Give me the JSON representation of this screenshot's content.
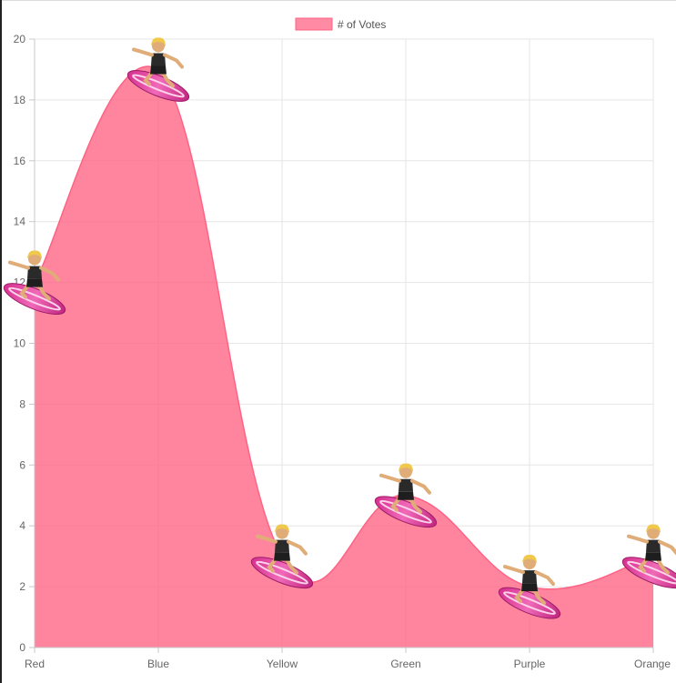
{
  "chart_data": {
    "type": "area",
    "categories": [
      "Red",
      "Blue",
      "Yellow",
      "Green",
      "Purple",
      "Orange"
    ],
    "series": [
      {
        "name": "# of Votes",
        "values": [
          12,
          19,
          3,
          5,
          2,
          3
        ]
      }
    ],
    "ylim": [
      0,
      20
    ],
    "yticks": [
      "0",
      "2",
      "4",
      "6",
      "8",
      "10",
      "12",
      "14",
      "16",
      "18",
      "20"
    ],
    "grid": true,
    "legend_position": "top",
    "point_marker": "surfer-emoji",
    "colors": {
      "fill": "#ff6384",
      "line": "#ff6384",
      "grid": "#e6e6e6",
      "axis": "#c8c8c8"
    }
  }
}
